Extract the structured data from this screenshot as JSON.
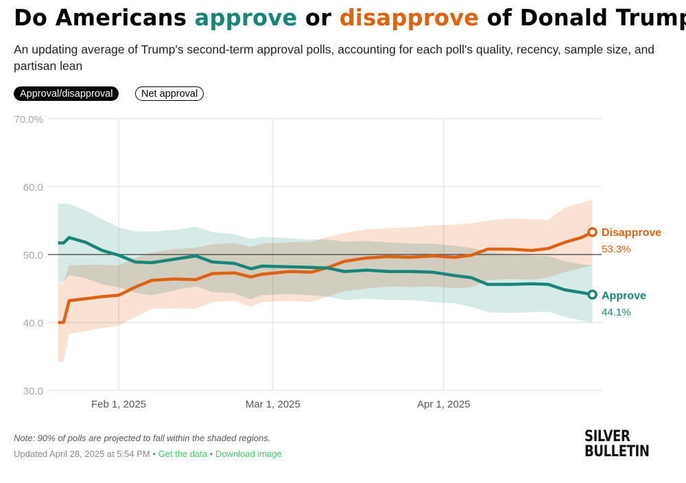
{
  "title": {
    "prefix": "Do Americans ",
    "approve_word": "approve",
    "middle": " or ",
    "disapprove_word": "disapprove",
    "suffix": " of Donald Trump?"
  },
  "subtitle": "An updating average of Trump's second-term approval polls, accounting for each poll's quality, recency, sample size, and partisan lean",
  "toggles": {
    "approval": "Approval/disapproval",
    "net": "Net approval",
    "active": "approval"
  },
  "colors": {
    "approve": "#16857a",
    "disapprove": "#e0620d",
    "approve_band": "#cfe6e4",
    "disapprove_band": "#f8dccb",
    "overlap_band": "#d9d1bf"
  },
  "note": "Note: 90% of polls are projected to fall within the shaded regions.",
  "footer": {
    "updated": "Updated April 28, 2025 at 5:54 PM",
    "sep": "•",
    "get_data": "Get the data",
    "download": "Download image"
  },
  "logo": {
    "line1": "SILVER",
    "line2": "BULLETIN"
  },
  "chart_data": {
    "type": "line",
    "ylim": [
      30,
      70
    ],
    "y_ticks": [
      "30.0",
      "40.0",
      "50.0",
      "60.0",
      "70.0%"
    ],
    "y_tick_values": [
      30,
      40,
      50,
      60,
      70
    ],
    "x_ticks": [
      {
        "date": "2025-02-01",
        "label": "Feb 1, 2025"
      },
      {
        "date": "2025-03-01",
        "label": "Mar 1, 2025"
      },
      {
        "date": "2025-04-01",
        "label": "Apr 1, 2025"
      }
    ],
    "xlim": [
      "2025-01-21",
      "2025-04-29"
    ],
    "reference_line": 50,
    "grid": true,
    "x": [
      "2025-01-21",
      "2025-01-22",
      "2025-01-23",
      "2025-01-26",
      "2025-01-29",
      "2025-02-01",
      "2025-02-04",
      "2025-02-07",
      "2025-02-11",
      "2025-02-15",
      "2025-02-18",
      "2025-02-22",
      "2025-02-25",
      "2025-02-27",
      "2025-03-04",
      "2025-03-08",
      "2025-03-11",
      "2025-03-14",
      "2025-03-18",
      "2025-03-22",
      "2025-03-26",
      "2025-03-30",
      "2025-04-03",
      "2025-04-06",
      "2025-04-09",
      "2025-04-13",
      "2025-04-17",
      "2025-04-20",
      "2025-04-23",
      "2025-04-26",
      "2025-04-28"
    ],
    "series": [
      {
        "name": "Approve",
        "end_label": "44.1%",
        "values": [
          51.7,
          51.7,
          52.5,
          51.8,
          50.6,
          49.9,
          48.9,
          48.8,
          49.3,
          49.8,
          48.9,
          48.7,
          47.9,
          48.3,
          48.2,
          48.1,
          48.0,
          47.5,
          47.7,
          47.5,
          47.5,
          47.4,
          46.9,
          46.6,
          45.6,
          45.6,
          45.7,
          45.6,
          44.8,
          44.4,
          44.1
        ],
        "lower": [
          45.9,
          45.9,
          47.0,
          46.5,
          45.6,
          45.2,
          44.4,
          44.0,
          44.7,
          45.3,
          44.5,
          44.3,
          43.4,
          44.0,
          44.2,
          44.0,
          43.8,
          43.3,
          43.5,
          43.3,
          43.3,
          43.0,
          42.8,
          42.3,
          41.5,
          41.4,
          41.5,
          41.6,
          40.8,
          40.3,
          40.0
        ],
        "upper": [
          57.5,
          57.5,
          57.4,
          56.5,
          55.2,
          54.0,
          53.4,
          53.4,
          53.6,
          54.1,
          53.3,
          53.0,
          52.3,
          52.6,
          52.4,
          52.2,
          52.2,
          51.9,
          52.0,
          51.8,
          51.6,
          51.6,
          51.3,
          51.0,
          50.3,
          50.1,
          49.8,
          49.8,
          49.0,
          48.6,
          48.4
        ]
      },
      {
        "name": "Disapprove",
        "end_label": "53.3%",
        "values": [
          40.0,
          40.0,
          43.2,
          43.5,
          43.8,
          44.0,
          45.2,
          46.2,
          46.4,
          46.3,
          47.2,
          47.3,
          46.7,
          47.1,
          47.5,
          47.4,
          48.1,
          49.0,
          49.5,
          49.7,
          49.6,
          49.8,
          49.6,
          49.9,
          50.8,
          50.8,
          50.6,
          50.9,
          51.8,
          52.5,
          53.3
        ],
        "lower": [
          34.2,
          34.2,
          38.3,
          38.7,
          39.2,
          39.5,
          40.8,
          42.0,
          42.1,
          42.0,
          43.0,
          43.2,
          42.3,
          43.0,
          43.2,
          43.0,
          43.8,
          44.6,
          45.0,
          45.3,
          45.2,
          45.3,
          45.0,
          45.2,
          46.2,
          46.4,
          46.3,
          46.6,
          47.4,
          48.0,
          48.4
        ],
        "upper": [
          45.8,
          45.8,
          48.4,
          48.5,
          48.5,
          48.4,
          49.5,
          50.3,
          50.8,
          51.0,
          51.5,
          51.7,
          51.1,
          51.6,
          51.8,
          51.9,
          52.6,
          53.2,
          53.7,
          53.9,
          54.0,
          54.3,
          54.4,
          54.6,
          55.0,
          55.3,
          55.2,
          55.1,
          56.9,
          57.6,
          58.1
        ]
      }
    ]
  }
}
